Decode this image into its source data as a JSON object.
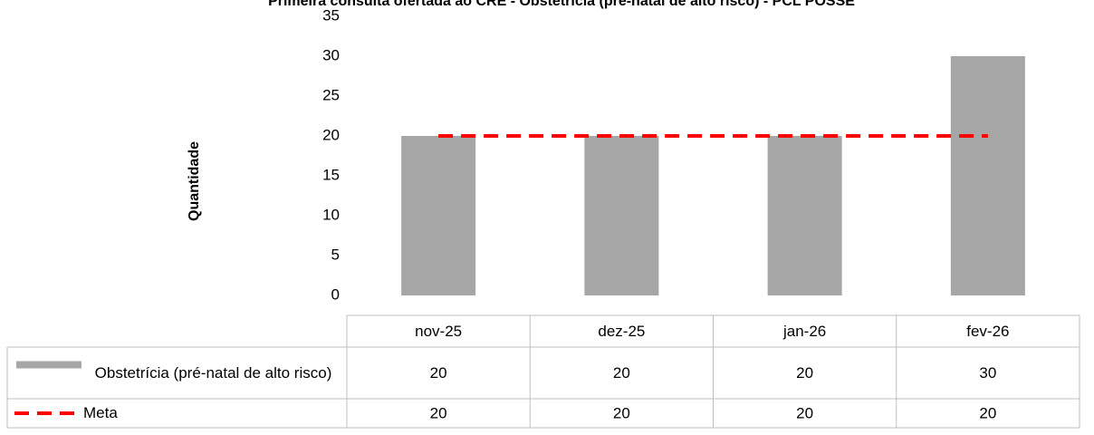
{
  "chart_data": {
    "type": "bar",
    "title": "Primeira consulta ofertada ao CRE - Obstetrícia (pré-natal de alto risco) - PCL POSSE",
    "y_label": "Quantidade",
    "categories": [
      "nov-25",
      "dez-25",
      "jan-26",
      "fev-26"
    ],
    "series": [
      {
        "name": "Obstetrícia (pré-natal de alto risco)",
        "type": "bar",
        "color": "#a6a6a6",
        "values": [
          20,
          20,
          20,
          30
        ]
      },
      {
        "name": "Meta",
        "type": "line",
        "dashed": true,
        "color": "#ff0000",
        "values": [
          20,
          20,
          20,
          20
        ]
      }
    ],
    "ylim": [
      0,
      35
    ],
    "yticks": [
      0,
      5,
      10,
      15,
      20,
      25,
      30,
      35
    ],
    "grid": false,
    "data_table": true
  }
}
